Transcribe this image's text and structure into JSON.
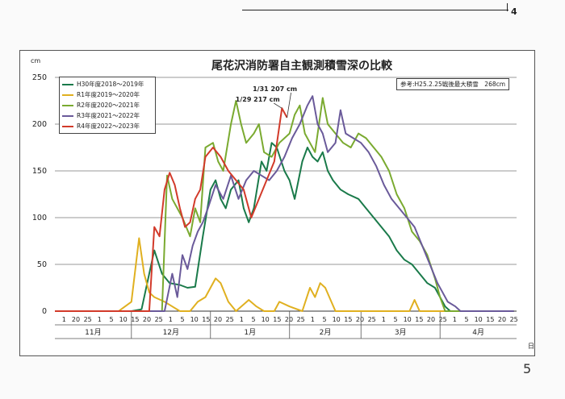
{
  "header_number": "4",
  "page_number": "5",
  "note": "参考:H25.2.25戦後最大積雪　268cm",
  "colors": {
    "grid": "#9a9a9a",
    "axis": "#333333"
  },
  "chart_data": {
    "type": "line",
    "title": "尾花沢消防署自主観測積雪深の比較",
    "ylabel": "cm",
    "xlabel": "日",
    "ylim": [
      0,
      250
    ],
    "yticks": [
      "0",
      "50",
      "100",
      "150",
      "200",
      "250"
    ],
    "day_ticks": [
      "1",
      "20",
      "25",
      "1",
      "5",
      "10",
      "15",
      "20",
      "25",
      "1",
      "5",
      "10",
      "15",
      "20",
      "25",
      "1",
      "5",
      "10",
      "15",
      "20",
      "25",
      "1",
      "5",
      "10",
      "15",
      "20",
      "25",
      "1",
      "5",
      "10",
      "15",
      "20",
      "25",
      "1",
      "5",
      "10",
      "15",
      "20",
      "25"
    ],
    "months": [
      "11月",
      "12月",
      "1月",
      "2月",
      "3月",
      "4月"
    ],
    "x_domain": [
      "11/01",
      "4/30"
    ],
    "annotations": [
      {
        "text": "1/29 217 cm",
        "x": "1/29",
        "y": 217
      },
      {
        "text": "1/31 207 cm",
        "x": "1/31",
        "y": 207
      }
    ],
    "series": [
      {
        "name": "H30年度2018～2019年",
        "color": "#1a7a4a",
        "points": [
          [
            "11/01",
            0
          ],
          [
            "12/01",
            0
          ],
          [
            "12/05",
            2
          ],
          [
            "12/08",
            40
          ],
          [
            "12/10",
            65
          ],
          [
            "12/13",
            40
          ],
          [
            "12/16",
            30
          ],
          [
            "12/20",
            28
          ],
          [
            "12/23",
            25
          ],
          [
            "12/26",
            26
          ],
          [
            "12/29",
            80
          ],
          [
            "1/01",
            130
          ],
          [
            "1/03",
            140
          ],
          [
            "1/05",
            120
          ],
          [
            "1/07",
            110
          ],
          [
            "1/09",
            130
          ],
          [
            "1/12",
            140
          ],
          [
            "1/14",
            110
          ],
          [
            "1/16",
            95
          ],
          [
            "1/18",
            110
          ],
          [
            "1/21",
            160
          ],
          [
            "1/23",
            150
          ],
          [
            "1/25",
            180
          ],
          [
            "1/27",
            175
          ],
          [
            "1/30",
            150
          ],
          [
            "2/01",
            140
          ],
          [
            "2/03",
            120
          ],
          [
            "2/06",
            160
          ],
          [
            "2/08",
            175
          ],
          [
            "2/10",
            165
          ],
          [
            "2/12",
            160
          ],
          [
            "2/14",
            170
          ],
          [
            "2/16",
            150
          ],
          [
            "2/18",
            140
          ],
          [
            "2/21",
            130
          ],
          [
            "2/24",
            125
          ],
          [
            "2/28",
            120
          ],
          [
            "3/03",
            110
          ],
          [
            "3/06",
            100
          ],
          [
            "3/09",
            90
          ],
          [
            "3/12",
            80
          ],
          [
            "3/15",
            65
          ],
          [
            "3/18",
            55
          ],
          [
            "3/21",
            50
          ],
          [
            "3/24",
            40
          ],
          [
            "3/27",
            30
          ],
          [
            "3/30",
            25
          ],
          [
            "4/01",
            15
          ],
          [
            "4/03",
            5
          ],
          [
            "4/05",
            0
          ],
          [
            "4/30",
            0
          ]
        ]
      },
      {
        "name": "R1年度2019～2020年",
        "color": "#e0b020",
        "points": [
          [
            "11/01",
            0
          ],
          [
            "11/26",
            0
          ],
          [
            "12/01",
            10
          ],
          [
            "12/04",
            78
          ],
          [
            "12/06",
            40
          ],
          [
            "12/08",
            20
          ],
          [
            "12/10",
            15
          ],
          [
            "12/14",
            10
          ],
          [
            "12/17",
            5
          ],
          [
            "12/20",
            0
          ],
          [
            "12/24",
            0
          ],
          [
            "12/27",
            10
          ],
          [
            "12/30",
            15
          ],
          [
            "1/03",
            35
          ],
          [
            "1/05",
            30
          ],
          [
            "1/08",
            10
          ],
          [
            "1/11",
            0
          ],
          [
            "1/16",
            12
          ],
          [
            "1/19",
            5
          ],
          [
            "1/22",
            0
          ],
          [
            "1/26",
            0
          ],
          [
            "1/28",
            10
          ],
          [
            "2/01",
            5
          ],
          [
            "2/06",
            0
          ],
          [
            "2/09",
            25
          ],
          [
            "2/11",
            15
          ],
          [
            "2/13",
            30
          ],
          [
            "2/15",
            25
          ],
          [
            "2/19",
            0
          ],
          [
            "3/02",
            0
          ],
          [
            "3/20",
            0
          ],
          [
            "3/22",
            12
          ],
          [
            "3/24",
            0
          ],
          [
            "4/30",
            0
          ]
        ]
      },
      {
        "name": "R2年度2020～2021年",
        "color": "#7aaa30",
        "points": [
          [
            "11/01",
            0
          ],
          [
            "12/13",
            0
          ],
          [
            "12/15",
            145
          ],
          [
            "12/17",
            120
          ],
          [
            "12/19",
            110
          ],
          [
            "12/21",
            100
          ],
          [
            "12/24",
            80
          ],
          [
            "12/26",
            110
          ],
          [
            "12/28",
            95
          ],
          [
            "12/30",
            175
          ],
          [
            "1/02",
            180
          ],
          [
            "1/04",
            160
          ],
          [
            "1/06",
            150
          ],
          [
            "1/09",
            200
          ],
          [
            "1/11",
            225
          ],
          [
            "1/13",
            200
          ],
          [
            "1/15",
            180
          ],
          [
            "1/18",
            190
          ],
          [
            "1/20",
            200
          ],
          [
            "1/22",
            170
          ],
          [
            "1/25",
            165
          ],
          [
            "1/28",
            180
          ],
          [
            "2/01",
            190
          ],
          [
            "2/03",
            210
          ],
          [
            "2/05",
            220
          ],
          [
            "2/07",
            190
          ],
          [
            "2/09",
            180
          ],
          [
            "2/11",
            170
          ],
          [
            "2/14",
            228
          ],
          [
            "2/16",
            200
          ],
          [
            "2/19",
            190
          ],
          [
            "2/22",
            180
          ],
          [
            "2/25",
            175
          ],
          [
            "2/28",
            190
          ],
          [
            "3/03",
            185
          ],
          [
            "3/06",
            175
          ],
          [
            "3/09",
            165
          ],
          [
            "3/12",
            150
          ],
          [
            "3/15",
            125
          ],
          [
            "3/18",
            110
          ],
          [
            "3/21",
            85
          ],
          [
            "3/24",
            75
          ],
          [
            "3/27",
            60
          ],
          [
            "3/30",
            35
          ],
          [
            "4/01",
            15
          ],
          [
            "4/03",
            0
          ],
          [
            "4/30",
            0
          ]
        ]
      },
      {
        "name": "R3年度2021～2022年",
        "color": "#6a5a9a",
        "points": [
          [
            "11/01",
            0
          ],
          [
            "12/14",
            0
          ],
          [
            "12/17",
            40
          ],
          [
            "12/19",
            15
          ],
          [
            "12/21",
            60
          ],
          [
            "12/23",
            45
          ],
          [
            "12/25",
            70
          ],
          [
            "12/27",
            85
          ],
          [
            "12/29",
            95
          ],
          [
            "12/31",
            110
          ],
          [
            "1/03",
            135
          ],
          [
            "1/06",
            120
          ],
          [
            "1/09",
            145
          ],
          [
            "1/12",
            120
          ],
          [
            "1/15",
            140
          ],
          [
            "1/18",
            150
          ],
          [
            "1/21",
            145
          ],
          [
            "1/24",
            140
          ],
          [
            "1/27",
            150
          ],
          [
            "1/30",
            165
          ],
          [
            "2/02",
            185
          ],
          [
            "2/05",
            200
          ],
          [
            "2/08",
            220
          ],
          [
            "2/10",
            230
          ],
          [
            "2/12",
            200
          ],
          [
            "2/14",
            190
          ],
          [
            "2/16",
            170
          ],
          [
            "2/19",
            180
          ],
          [
            "2/21",
            215
          ],
          [
            "2/23",
            190
          ],
          [
            "2/26",
            185
          ],
          [
            "3/01",
            180
          ],
          [
            "3/04",
            170
          ],
          [
            "3/07",
            155
          ],
          [
            "3/10",
            135
          ],
          [
            "3/13",
            120
          ],
          [
            "3/16",
            110
          ],
          [
            "3/19",
            100
          ],
          [
            "3/22",
            90
          ],
          [
            "3/25",
            70
          ],
          [
            "3/28",
            50
          ],
          [
            "3/31",
            30
          ],
          [
            "4/02",
            20
          ],
          [
            "4/04",
            10
          ],
          [
            "4/07",
            5
          ],
          [
            "4/09",
            0
          ],
          [
            "4/30",
            0
          ]
        ]
      },
      {
        "name": "R4年度2022～2023年",
        "color": "#d23a2a",
        "points": [
          [
            "11/01",
            0
          ],
          [
            "12/08",
            0
          ],
          [
            "12/10",
            90
          ],
          [
            "12/12",
            80
          ],
          [
            "12/14",
            130
          ],
          [
            "12/16",
            148
          ],
          [
            "12/18",
            135
          ],
          [
            "12/20",
            110
          ],
          [
            "12/22",
            90
          ],
          [
            "12/24",
            95
          ],
          [
            "12/26",
            120
          ],
          [
            "12/28",
            130
          ],
          [
            "12/30",
            165
          ],
          [
            "1/02",
            175
          ],
          [
            "1/05",
            165
          ],
          [
            "1/08",
            150
          ],
          [
            "1/11",
            140
          ],
          [
            "1/14",
            130
          ],
          [
            "1/17",
            100
          ],
          [
            "1/20",
            120
          ],
          [
            "1/23",
            140
          ],
          [
            "1/26",
            160
          ],
          [
            "1/29",
            217
          ],
          [
            "1/31",
            207
          ]
        ]
      }
    ]
  }
}
